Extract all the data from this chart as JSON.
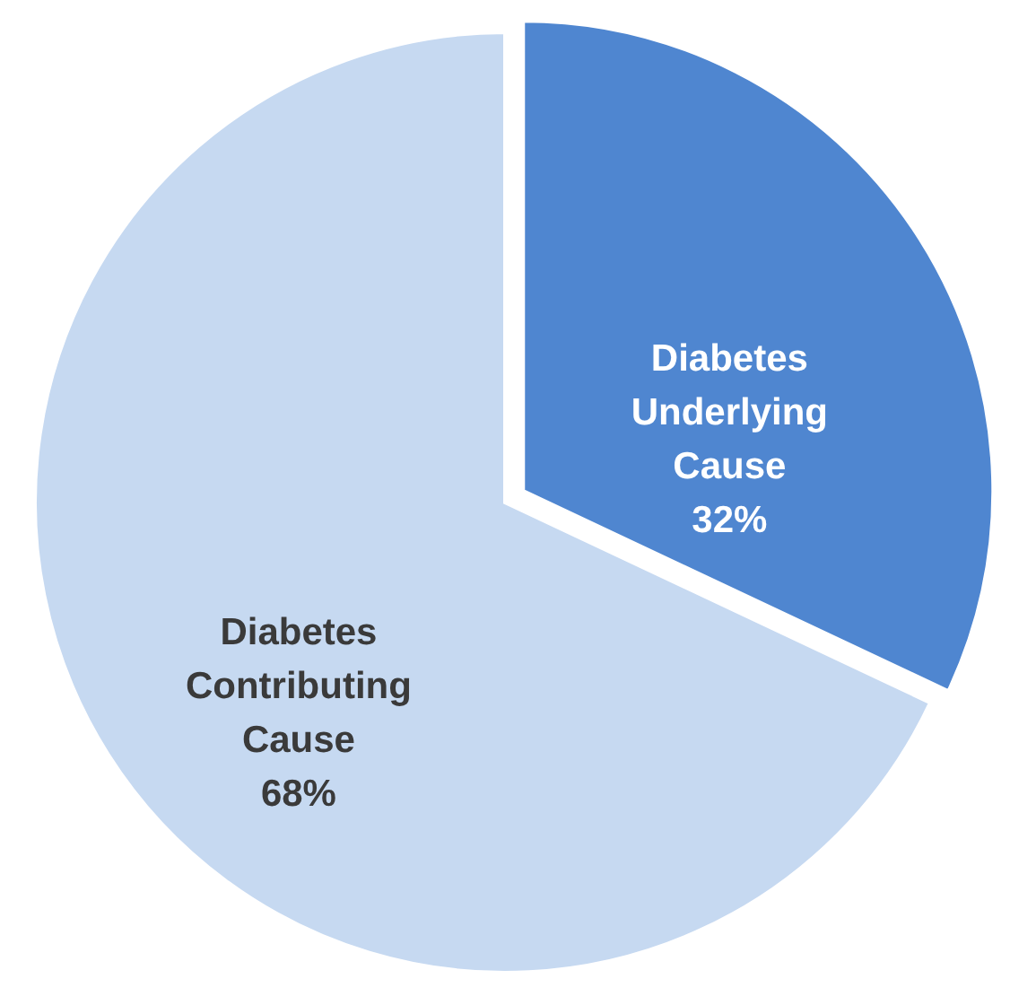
{
  "chart_data": {
    "type": "pie",
    "categories": [
      "Diabetes Underlying Cause",
      "Diabetes Contributing Cause"
    ],
    "values": [
      32,
      68
    ],
    "value_labels": [
      "32%",
      "68%"
    ],
    "colors": [
      "#4f86d0",
      "#c6d9f1"
    ]
  }
}
